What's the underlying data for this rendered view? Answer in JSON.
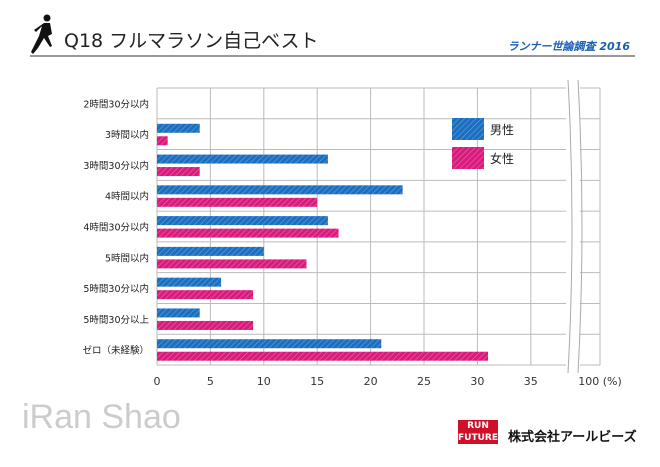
{
  "header": {
    "title": "Q18 フルマラソン自己ベスト",
    "survey": "ランナー世論調査 2016"
  },
  "footer": {
    "watermark": "iRan Shao",
    "company": "株式会社アールビーズ",
    "badge": "RUN FUTURE"
  },
  "chart_data": {
    "type": "bar",
    "orientation": "horizontal",
    "title": "Q18 フルマラソン自己ベスト",
    "categories": [
      "2時間30分以内",
      "3時間以内",
      "3時間30分以内",
      "4時間以内",
      "4時間30分以内",
      "5時間以内",
      "5時間30分以内",
      "5時間30分以上",
      "ゼロ（未経験）"
    ],
    "series": [
      {
        "name": "男性",
        "color": "#1a6fc0",
        "values": [
          0,
          4,
          16,
          23,
          16,
          10,
          6,
          4,
          21
        ]
      },
      {
        "name": "女性",
        "color": "#d81b7c",
        "values": [
          0,
          1,
          4,
          15,
          17,
          14,
          9,
          9,
          31
        ]
      }
    ],
    "xticks": [
      "0",
      "5",
      "10",
      "15",
      "20",
      "25",
      "30",
      "35",
      "100 (%)"
    ],
    "xlim": [
      0,
      35
    ],
    "axis_break": true,
    "xmax_label": "100",
    "grid": true,
    "legend": "top-right"
  }
}
